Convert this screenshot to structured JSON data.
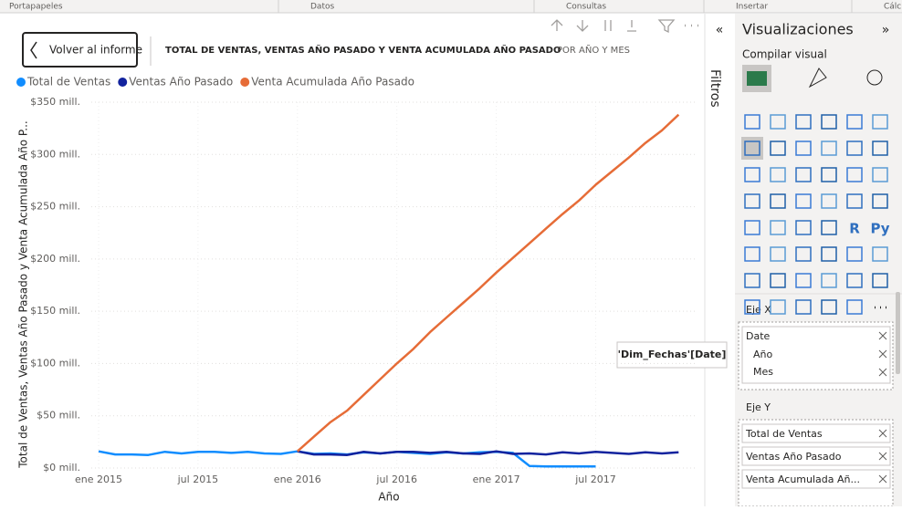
{
  "ribbon": [
    "Portapapeles",
    "Datos",
    "Consultas",
    "Insertar",
    "Cálcu"
  ],
  "back_button": "Volver al informe",
  "chart_data": {
    "type": "line",
    "title": "TOTAL DE VENTAS, VENTAS AÑO PASADO Y VENTA ACUMULADA AÑO PASADO",
    "subtitle": "POR AÑO Y MES",
    "x_label": "Año",
    "y_label": "Total de Ventas, Ventas Año Pasado y Venta Acumulada Año P...",
    "categories": [
      "ene 2015",
      null,
      null,
      null,
      null,
      null,
      "jul 2015",
      null,
      null,
      null,
      null,
      null,
      "ene 2016",
      null,
      null,
      null,
      null,
      null,
      "jul 2016",
      null,
      null,
      null,
      null,
      null,
      "ene 2017",
      null,
      null,
      null,
      null,
      null,
      "jul 2017",
      null,
      null,
      null,
      null,
      null
    ],
    "series": [
      {
        "name": "Total de Ventas",
        "color": "#118DFF",
        "values": [
          16,
          13,
          13,
          12.5,
          15.5,
          14,
          15.5,
          15.5,
          14.5,
          15.5,
          14,
          13.5,
          16,
          13.5,
          14,
          13,
          15,
          14,
          15.5,
          14.5,
          13.5,
          15,
          14,
          15,
          15.5,
          14.5,
          2,
          1.5,
          1.5,
          1.5,
          1.5,
          null,
          null,
          null,
          null,
          null
        ]
      },
      {
        "name": "Ventas Año Pasado",
        "color": "#12239E",
        "values": [
          null,
          null,
          null,
          null,
          null,
          null,
          null,
          null,
          null,
          null,
          null,
          null,
          16,
          13,
          13,
          12.5,
          15.5,
          14,
          15.5,
          15.5,
          14.5,
          15.5,
          14,
          13.5,
          16,
          13.5,
          14,
          13,
          15,
          14,
          15.5,
          14.5,
          13.5,
          15,
          14,
          15
        ]
      },
      {
        "name": "Venta Acumulada Año Pasado",
        "color": "#E66C37",
        "values": [
          null,
          null,
          null,
          null,
          null,
          null,
          null,
          null,
          null,
          null,
          null,
          null,
          16,
          30,
          44,
          55,
          70,
          85,
          100,
          114,
          130,
          144,
          158,
          172,
          187,
          201,
          215,
          229,
          243,
          256,
          271,
          284,
          297,
          311,
          323,
          338
        ]
      }
    ],
    "ylim": [
      0,
      350
    ],
    "yticks": [
      {
        "value": 0,
        "label": "$0 mill."
      },
      {
        "value": 50,
        "label": "$50 mill."
      },
      {
        "value": 100,
        "label": "$100 mill."
      },
      {
        "value": 150,
        "label": "$150 mill."
      },
      {
        "value": 200,
        "label": "$200 mill."
      },
      {
        "value": 250,
        "label": "$250 mill."
      },
      {
        "value": 300,
        "label": "$300 mill."
      },
      {
        "value": 350,
        "label": "$350 mill."
      }
    ],
    "grid": true
  },
  "filters_pane": {
    "title": "Filtros"
  },
  "viz_pane": {
    "title": "Visualizaciones",
    "tab": "Compilar visual",
    "icon_texts": [
      "R",
      "Py"
    ],
    "x_well": {
      "title": "Eje X",
      "field": "Date",
      "levels": [
        "Año",
        "Mes"
      ]
    },
    "tooltip": "'Dim_Fechas'[Date]",
    "y_well": {
      "title": "Eje Y",
      "fields": [
        "Total de Ventas",
        "Ventas Año Pasado",
        "Venta Acumulada Añ..."
      ]
    }
  }
}
